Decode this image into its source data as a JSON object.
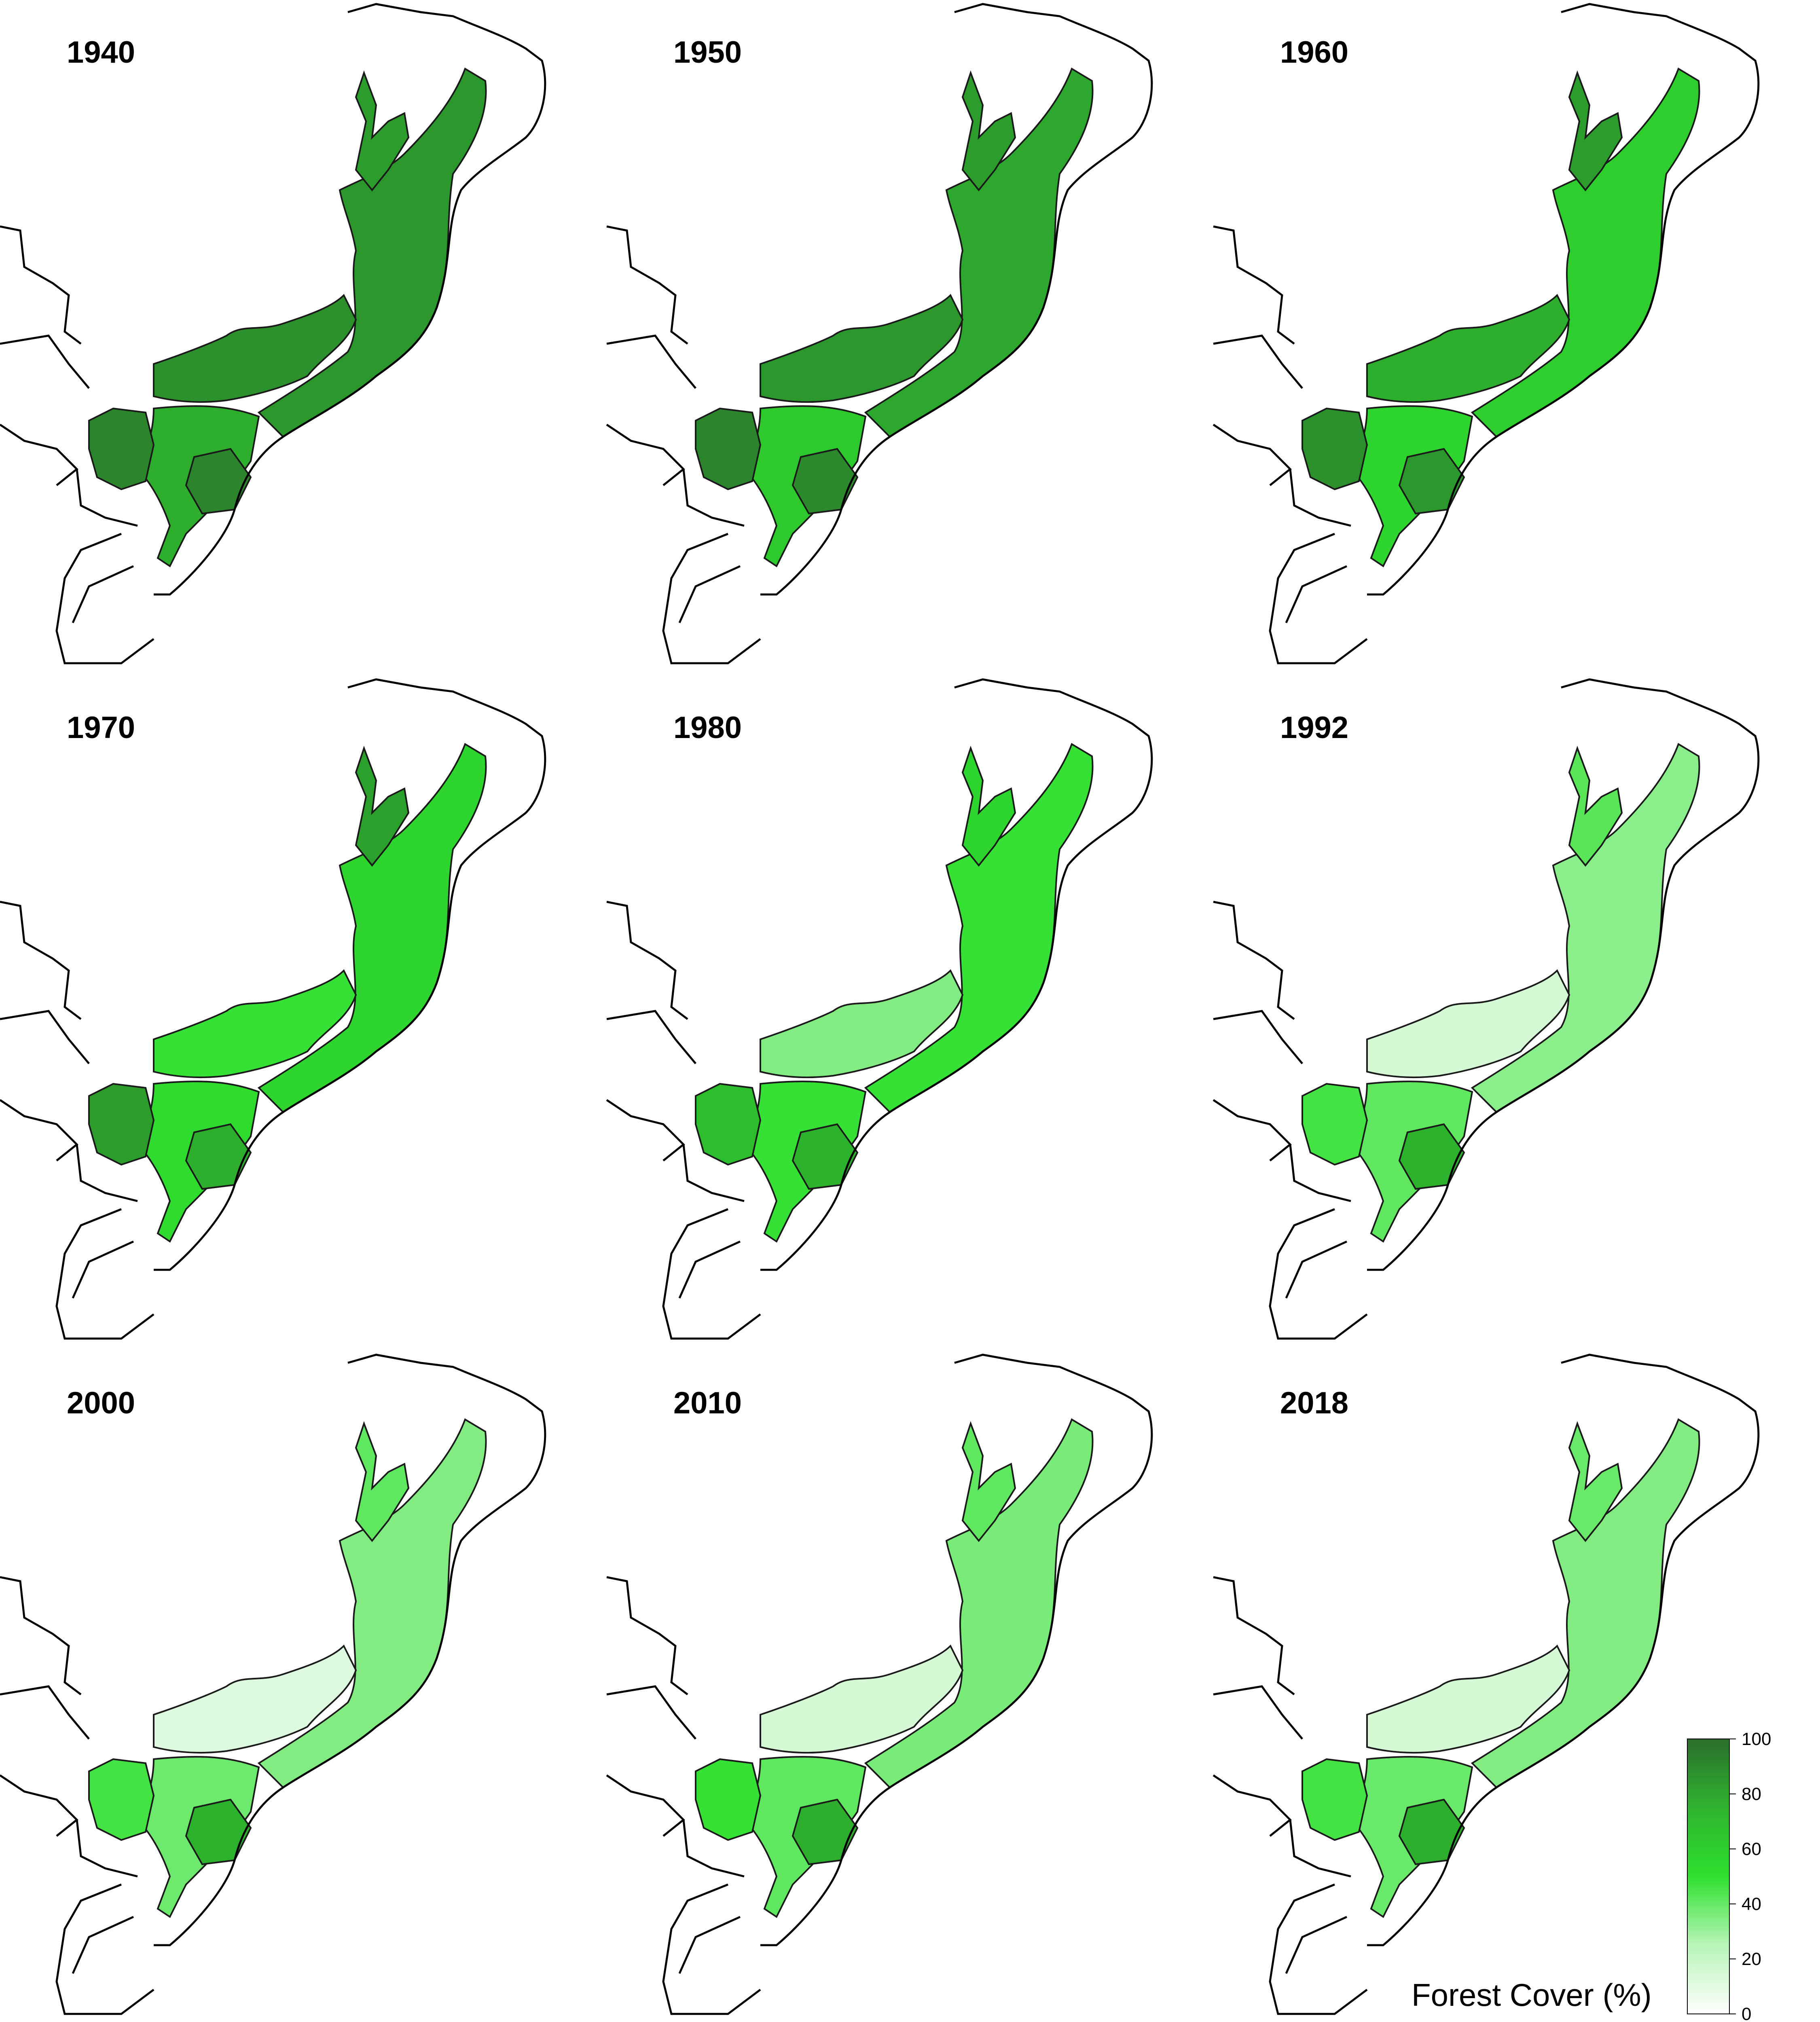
{
  "panels": [
    {
      "year": "1940",
      "forest": {
        "coast": 82,
        "north": 80,
        "central": 85,
        "south": 72,
        "inland": 90,
        "hot": 90
      }
    },
    {
      "year": "1950",
      "forest": {
        "coast": 75,
        "north": 80,
        "central": 82,
        "south": 60,
        "inland": 90,
        "hot": 88
      }
    },
    {
      "year": "1960",
      "forest": {
        "coast": 58,
        "north": 80,
        "central": 72,
        "south": 55,
        "inland": 85,
        "hot": 82
      }
    },
    {
      "year": "1970",
      "forest": {
        "coast": 55,
        "north": 78,
        "central": 48,
        "south": 52,
        "inland": 80,
        "hot": 72
      }
    },
    {
      "year": "1980",
      "forest": {
        "coast": 48,
        "north": 55,
        "central": 30,
        "south": 48,
        "inland": 65,
        "hot": 70
      }
    },
    {
      "year": "1992",
      "forest": {
        "coast": 28,
        "north": 40,
        "central": 10,
        "south": 38,
        "inland": 45,
        "hot": 70
      }
    },
    {
      "year": "2000",
      "forest": {
        "coast": 30,
        "north": 38,
        "central": 8,
        "south": 35,
        "inland": 45,
        "hot": 70
      }
    },
    {
      "year": "2010",
      "forest": {
        "coast": 32,
        "north": 38,
        "central": 10,
        "south": 38,
        "inland": 48,
        "hot": 72
      }
    },
    {
      "year": "2018",
      "forest": {
        "coast": 30,
        "north": 36,
        "central": 10,
        "south": 36,
        "inland": 45,
        "hot": 72
      }
    }
  ],
  "legend": {
    "title": "Forest Cover (%)",
    "ticks": [
      "100",
      "80",
      "60",
      "40",
      "20",
      "0"
    ],
    "tick_values": [
      100,
      80,
      60,
      40,
      20,
      0
    ],
    "colors": {
      "low": "#ffffff",
      "mid": "#2ee02e",
      "high": "#2b6e2b"
    }
  }
}
